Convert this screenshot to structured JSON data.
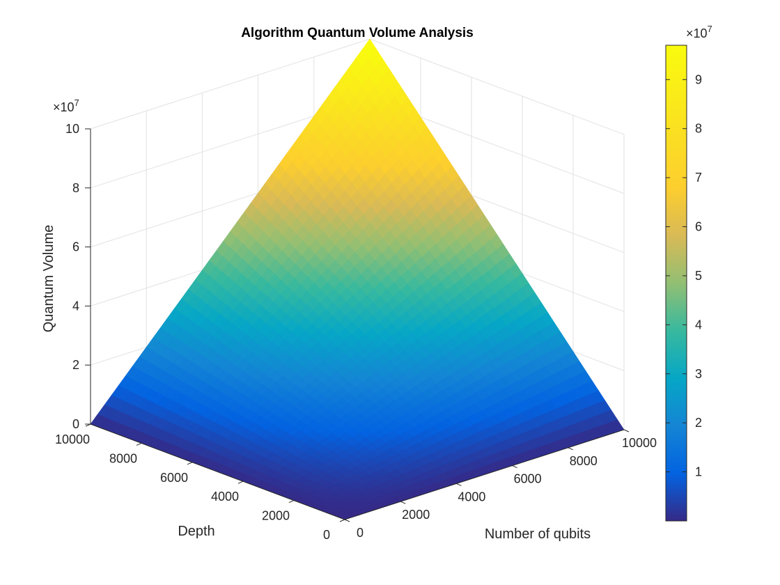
{
  "chart_data": {
    "type": "surface",
    "title": "Algorithm Quantum Volume Analysis",
    "xlabel": "Number of qubits",
    "ylabel": "Depth",
    "zlabel": "Quantum Volume",
    "formula": "z = x * y",
    "x_range": [
      0,
      10000
    ],
    "y_range": [
      0,
      10000
    ],
    "z_range": [
      0,
      100000000
    ],
    "x_ticks": [
      "0",
      "2000",
      "4000",
      "6000",
      "8000",
      "10000"
    ],
    "y_ticks": [
      "0",
      "2000",
      "4000",
      "6000",
      "8000",
      "10000"
    ],
    "z_ticks": [
      "0",
      "2",
      "4",
      "6",
      "8",
      "10"
    ],
    "z_multiplier": "×10",
    "z_exponent": "7",
    "colorbar": {
      "ticks": [
        "1",
        "2",
        "3",
        "4",
        "5",
        "6",
        "7",
        "8",
        "9"
      ],
      "multiplier": "×10",
      "exponent": "7",
      "range": [
        0,
        97000000
      ],
      "colormap": "parula"
    },
    "grid": true,
    "view": "3d"
  }
}
